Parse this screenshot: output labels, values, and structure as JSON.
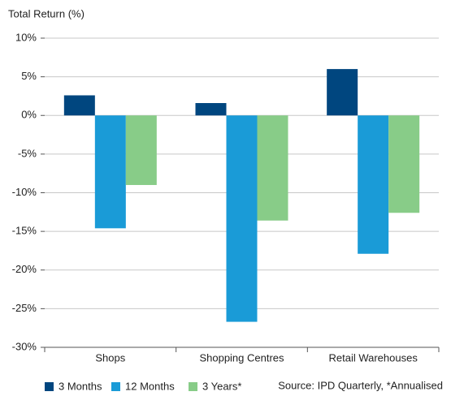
{
  "chart_data": {
    "type": "bar",
    "y_label": "Total Return (%)",
    "source": "Source: IPD Quarterly, *Annualised",
    "categories": [
      "Shops",
      "Shopping Centres",
      "Retail Warehouses"
    ],
    "series": [
      {
        "name": "3 Months",
        "color": "#00467f",
        "values": [
          2.6,
          1.6,
          6.0
        ]
      },
      {
        "name": "12 Months",
        "color": "#1a9bd7",
        "values": [
          -14.6,
          -26.7,
          -17.9
        ]
      },
      {
        "name": "3 Years*",
        "color": "#88cc88",
        "values": [
          -9.0,
          -13.6,
          -12.6
        ]
      }
    ],
    "ylim": [
      -30,
      10
    ],
    "yticks": [
      {
        "value": -30,
        "label": "-30%"
      },
      {
        "value": -25,
        "label": "-25%"
      },
      {
        "value": -20,
        "label": "-20%"
      },
      {
        "value": -15,
        "label": "-15%"
      },
      {
        "value": -10,
        "label": "-10%"
      },
      {
        "value": -5,
        "label": "-5%"
      },
      {
        "value": 0,
        "label": "0%"
      },
      {
        "value": 5,
        "label": "5%"
      },
      {
        "value": 10,
        "label": "10%"
      }
    ],
    "grid": true,
    "legend": "bottom"
  }
}
